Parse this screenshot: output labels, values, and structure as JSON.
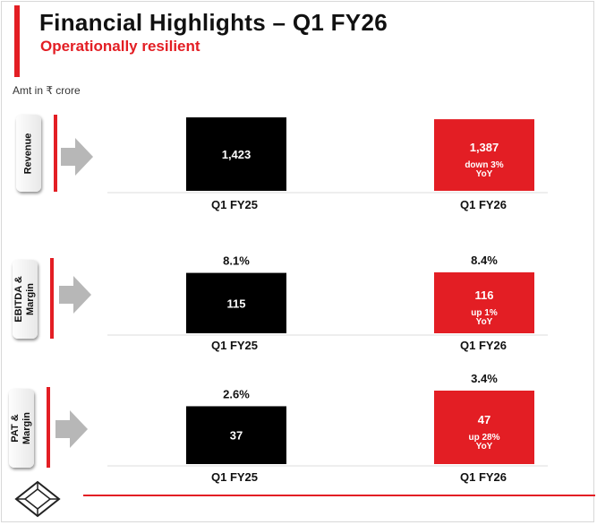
{
  "header": {
    "title": "Financial Highlights – Q1 FY26",
    "subtitle": "Operationally resilient",
    "unit_note": "Amt in ₹ crore"
  },
  "colors": {
    "accent": "#e31e24",
    "prior_period_bar": "#000000",
    "current_period_bar": "#e31e24"
  },
  "icons": {
    "row_marker": "right-arrow-icon",
    "logo": "cube-logo-icon"
  },
  "chart_data": [
    {
      "type": "bar",
      "row_label": "Revenue",
      "categories": [
        "Q1 FY25",
        "Q1 FY26"
      ],
      "values": [
        1423,
        1387
      ],
      "value_labels": [
        "1,423",
        "1,387"
      ],
      "top_labels": [
        "",
        ""
      ],
      "annotations": [
        "",
        "down 3%\nYoY"
      ]
    },
    {
      "type": "bar",
      "row_label": "EBITDA &\nMargin",
      "categories": [
        "Q1 FY25",
        "Q1 FY26"
      ],
      "values": [
        115,
        116
      ],
      "value_labels": [
        "115",
        "116"
      ],
      "top_labels": [
        "8.1%",
        "8.4%"
      ],
      "annotations": [
        "",
        "up 1%\nYoY"
      ]
    },
    {
      "type": "bar",
      "row_label": "PAT &\nMargin",
      "categories": [
        "Q1 FY25",
        "Q1 FY26"
      ],
      "values": [
        37,
        47
      ],
      "value_labels": [
        "37",
        "47"
      ],
      "top_labels": [
        "2.6%",
        "3.4%"
      ],
      "annotations": [
        "",
        "up 28%\nYoY"
      ]
    }
  ]
}
